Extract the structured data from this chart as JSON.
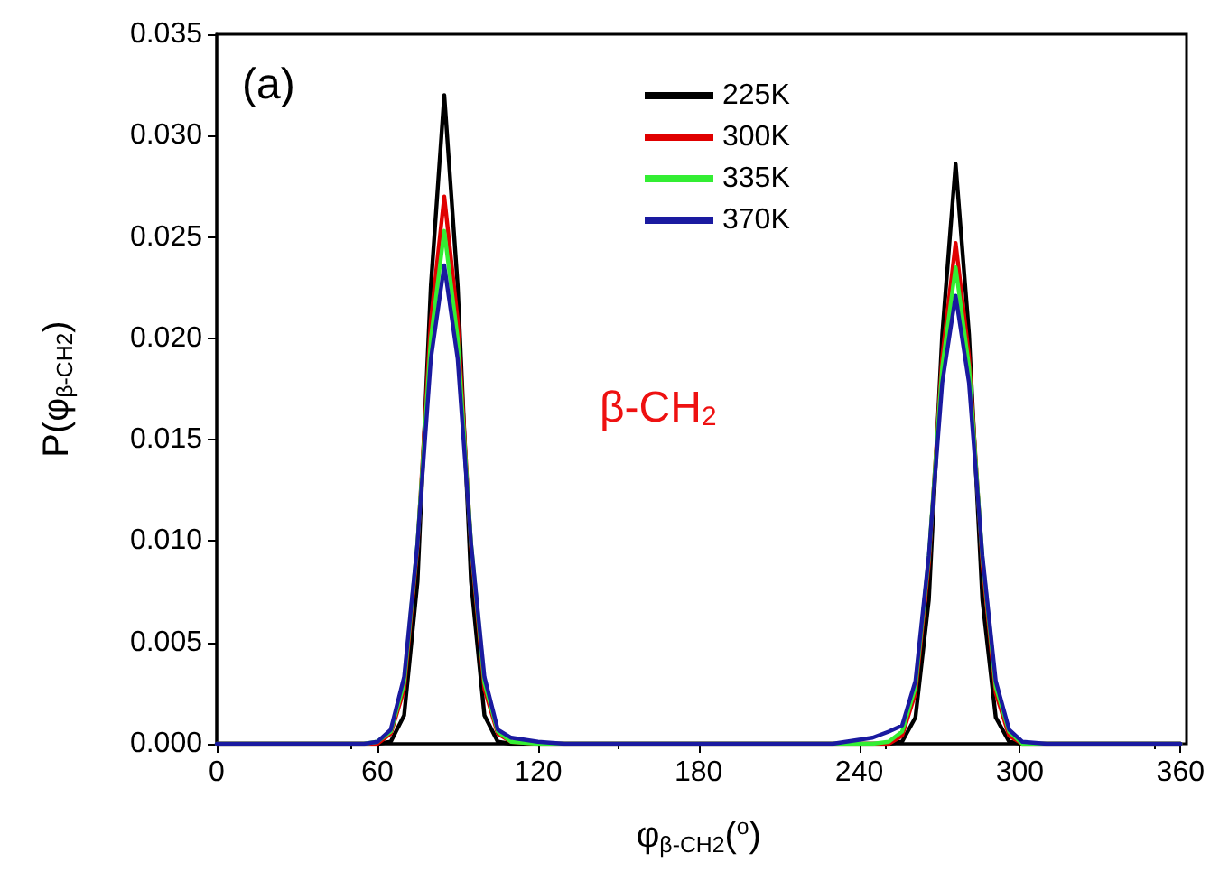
{
  "chart_data": {
    "type": "line",
    "xlabel": "φ$_{β-CH2}$($^{o}$)",
    "ylabel": "P(φ$_{β-CH2}$)",
    "annotations": [
      "(a)",
      "β-CH$_{2}$"
    ],
    "x": [
      0,
      55,
      60,
      65,
      70,
      75,
      80,
      85,
      90,
      95,
      100,
      105,
      110,
      120,
      130,
      180,
      230,
      245,
      251,
      256,
      261,
      266,
      271,
      276,
      281,
      286,
      291,
      296,
      301,
      310,
      360
    ],
    "series": [
      {
        "name": "225K",
        "color": "#000000",
        "values": [
          0,
          0,
          0,
          0.0001,
          0.0014,
          0.008,
          0.0226,
          0.032,
          0.0226,
          0.008,
          0.0014,
          0.0001,
          0,
          0,
          0,
          0,
          0,
          0,
          0,
          0.0001,
          0.0013,
          0.0071,
          0.0202,
          0.0286,
          0.0202,
          0.0071,
          0.0013,
          0.0001,
          0,
          0,
          0
        ]
      },
      {
        "name": "300K",
        "color": "#e00000",
        "values": [
          0,
          0,
          0,
          0.0005,
          0.0027,
          0.0097,
          0.0209,
          0.027,
          0.0209,
          0.0097,
          0.0027,
          0.0005,
          0.0001,
          0,
          0,
          0,
          0,
          0,
          0,
          0.0004,
          0.0025,
          0.0089,
          0.0191,
          0.0247,
          0.0191,
          0.0089,
          0.0025,
          0.0004,
          0,
          0,
          0
        ]
      },
      {
        "name": "335K",
        "color": "#33ee33",
        "values": [
          0,
          0,
          0.0001,
          0.0006,
          0.003,
          0.0099,
          0.02,
          0.0253,
          0.02,
          0.0099,
          0.003,
          0.0006,
          0.0001,
          0,
          0,
          0,
          0,
          0,
          0.0001,
          0.0006,
          0.0028,
          0.0092,
          0.0186,
          0.0235,
          0.0186,
          0.0092,
          0.0028,
          0.0006,
          0,
          0,
          0
        ]
      },
      {
        "name": "370K",
        "color": "#1a1aa0",
        "values": [
          0,
          0,
          0.0001,
          0.0007,
          0.0033,
          0.0099,
          0.019,
          0.0236,
          0.019,
          0.0099,
          0.0033,
          0.0007,
          0.0003,
          0.0001,
          0,
          0,
          0,
          0.0003,
          0.0006,
          0.0009,
          0.0031,
          0.0093,
          0.0178,
          0.0221,
          0.0178,
          0.0093,
          0.0031,
          0.0007,
          0.0001,
          0,
          0
        ]
      }
    ],
    "xlim": [
      0,
      360
    ],
    "xticks": [
      0,
      60,
      120,
      180,
      240,
      300,
      360
    ],
    "ylim": [
      0,
      0.035
    ],
    "yticks": [
      {
        "value": 0,
        "label": "0.000"
      },
      0.005,
      {
        "value": 0.01,
        "label": "0.010"
      },
      0.015,
      {
        "value": 0.02,
        "label": "0.020"
      },
      0.025,
      {
        "value": 0.03,
        "label": "0.030"
      },
      0.035
    ],
    "legend": "top",
    "grid": false,
    "marker": "none",
    "line_style": "solid"
  }
}
